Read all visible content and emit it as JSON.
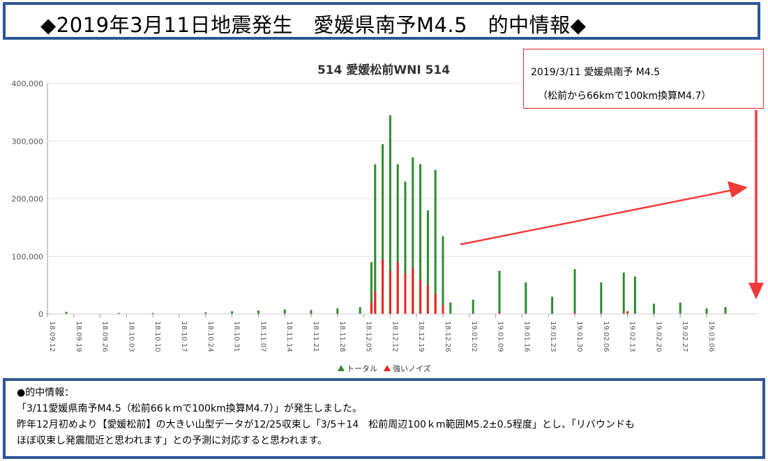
{
  "header": {
    "title": "◆2019年3月11日地震発生　愛媛県南予M4.5　的中情報◆"
  },
  "callout": {
    "line1": "2019/3/11 愛媛県南予 M4.5",
    "line2": "（松前から66kmで100km換算M4.7）"
  },
  "info": {
    "heading": "●的中情報：",
    "line1": "「3/11愛媛県南予M4.5（松前66ｋmで100km換算M4.7）」が発生しました。",
    "line2": "昨年12月初めより【愛媛松前】の大きい山型データが12/25収束し「3/5＋14　松前周辺100ｋm範囲M5.2±0.5程度」とし、「リバウンドも",
    "line3": "ほぼ収束し発震間近と思われます」との予測に対応すると思われます。"
  },
  "colors": {
    "total": "#2e8b2e",
    "noise": "#e8251f",
    "accent": "#2f5597",
    "arrow": "#f23a3a"
  },
  "chart_data": {
    "type": "bar",
    "title": "514 愛媛松前WNI 514",
    "xlabel": "",
    "ylabel": "",
    "ylim": [
      0,
      400000
    ],
    "yticks": [
      "0",
      "100,000",
      "200,000",
      "300,000",
      "400,000"
    ],
    "xticks": [
      "18.09.12",
      "18.09.19",
      "18.09.26",
      "18.10.03",
      "18.10.10",
      "18.10.17",
      "18.10.24",
      "18.10.31",
      "18.11.07",
      "18.11.14",
      "18.11.21",
      "18.11.28",
      "18.12.05",
      "18.12.12",
      "18.12.19",
      "18.12.26",
      "19.01.02",
      "19.01.09",
      "19.01.16",
      "19.01.23",
      "19.01.30",
      "19.02.06",
      "19.02.13",
      "19.02.20",
      "19.02.27",
      "19.03.06"
    ],
    "legend_position": "bottom",
    "series": [
      {
        "name": "トータル",
        "color": "#2e8b2e",
        "points": [
          [
            "18.09.12",
            1000
          ],
          [
            "18.09.17",
            4000
          ],
          [
            "18.10.01",
            2000
          ],
          [
            "18.10.10",
            2000
          ],
          [
            "18.10.24",
            3000
          ],
          [
            "18.10.31",
            5000
          ],
          [
            "18.11.07",
            6000
          ],
          [
            "18.11.14",
            8000
          ],
          [
            "18.11.21",
            7000
          ],
          [
            "18.11.28",
            10000
          ],
          [
            "18.12.04",
            12000
          ],
          [
            "18.12.07",
            90000
          ],
          [
            "18.12.08",
            260000
          ],
          [
            "18.12.10",
            295000
          ],
          [
            "18.12.12",
            345000
          ],
          [
            "18.12.14",
            260000
          ],
          [
            "18.12.16",
            230000
          ],
          [
            "18.12.18",
            272000
          ],
          [
            "18.12.20",
            260000
          ],
          [
            "18.12.22",
            180000
          ],
          [
            "18.12.24",
            250000
          ],
          [
            "18.12.26",
            135000
          ],
          [
            "18.12.28",
            20000
          ],
          [
            "19.01.03",
            25000
          ],
          [
            "19.01.10",
            75000
          ],
          [
            "19.01.17",
            55000
          ],
          [
            "19.01.24",
            30000
          ],
          [
            "19.01.30",
            78000
          ],
          [
            "19.02.06",
            55000
          ],
          [
            "19.02.12",
            72000
          ],
          [
            "19.02.15",
            65000
          ],
          [
            "19.02.20",
            18000
          ],
          [
            "19.02.27",
            20000
          ],
          [
            "19.03.06",
            10000
          ],
          [
            "19.03.11",
            12000
          ]
        ]
      },
      {
        "name": "強いノイズ",
        "color": "#e8251f",
        "points": [
          [
            "18.12.07",
            20000
          ],
          [
            "18.12.08",
            40000
          ],
          [
            "18.12.10",
            95000
          ],
          [
            "18.12.12",
            75000
          ],
          [
            "18.12.14",
            90000
          ],
          [
            "18.12.16",
            70000
          ],
          [
            "18.12.18",
            80000
          ],
          [
            "18.12.20",
            60000
          ],
          [
            "18.12.22",
            50000
          ],
          [
            "18.12.24",
            35000
          ],
          [
            "18.12.26",
            15000
          ],
          [
            "19.01.10",
            3000
          ],
          [
            "19.01.30",
            3000
          ],
          [
            "19.02.13",
            5000
          ]
        ]
      }
    ]
  }
}
